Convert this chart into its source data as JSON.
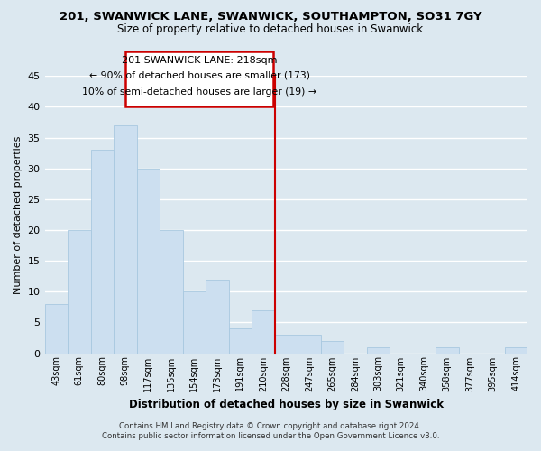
{
  "title": "201, SWANWICK LANE, SWANWICK, SOUTHAMPTON, SO31 7GY",
  "subtitle": "Size of property relative to detached houses in Swanwick",
  "xlabel": "Distribution of detached houses by size in Swanwick",
  "ylabel": "Number of detached properties",
  "bar_labels": [
    "43sqm",
    "61sqm",
    "80sqm",
    "98sqm",
    "117sqm",
    "135sqm",
    "154sqm",
    "173sqm",
    "191sqm",
    "210sqm",
    "228sqm",
    "247sqm",
    "265sqm",
    "284sqm",
    "303sqm",
    "321sqm",
    "340sqm",
    "358sqm",
    "377sqm",
    "395sqm",
    "414sqm"
  ],
  "bar_values": [
    8,
    20,
    33,
    37,
    30,
    20,
    10,
    12,
    4,
    7,
    3,
    3,
    2,
    0,
    1,
    0,
    0,
    1,
    0,
    0,
    1
  ],
  "bar_color": "#ccdff0",
  "bar_edge_color": "#a8c8e0",
  "ylim": [
    0,
    45
  ],
  "yticks": [
    0,
    5,
    10,
    15,
    20,
    25,
    30,
    35,
    40,
    45
  ],
  "property_line_x": 9.5,
  "property_line_color": "#cc0000",
  "annotation_title": "201 SWANWICK LANE: 218sqm",
  "annotation_line1": "← 90% of detached houses are smaller (173)",
  "annotation_line2": "10% of semi-detached houses are larger (19) →",
  "annotation_box_color": "#ffffff",
  "annotation_box_edge": "#cc0000",
  "footer_line1": "Contains HM Land Registry data © Crown copyright and database right 2024.",
  "footer_line2": "Contains public sector information licensed under the Open Government Licence v3.0.",
  "background_color": "#dce8f0",
  "plot_bg_color": "#dce8f0",
  "grid_color": "#ffffff"
}
